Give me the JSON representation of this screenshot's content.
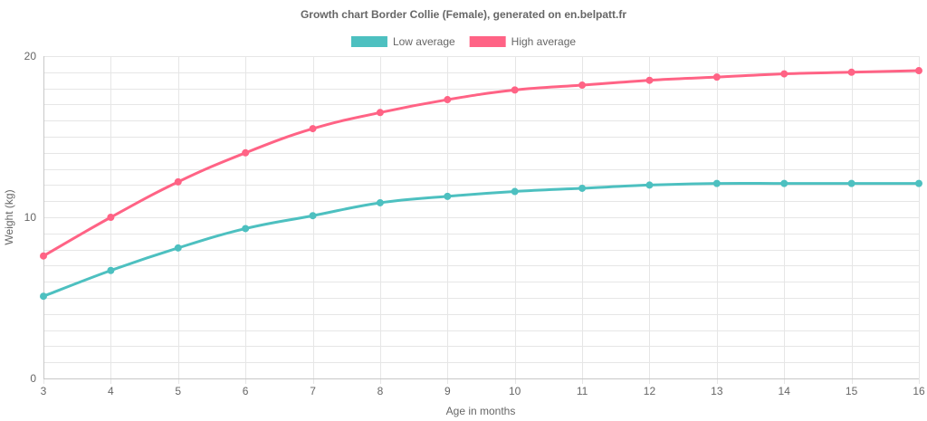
{
  "chart_data": {
    "type": "line",
    "title": "Growth chart Border Collie (Female), generated on en.belpatt.fr",
    "xlabel": "Age in months",
    "ylabel": "Weight (kg)",
    "x": [
      3,
      4,
      5,
      6,
      7,
      8,
      9,
      10,
      11,
      12,
      13,
      14,
      15,
      16
    ],
    "ylim": [
      0,
      20
    ],
    "y_ticks": [
      0,
      10,
      20
    ],
    "series": [
      {
        "name": "Low average",
        "color": "#4dc0c0",
        "values": [
          5.1,
          6.7,
          8.1,
          9.3,
          10.1,
          10.9,
          11.3,
          11.6,
          11.8,
          12.0,
          12.1,
          12.1,
          12.1,
          12.1
        ]
      },
      {
        "name": "High average",
        "color": "#ff6385",
        "values": [
          7.6,
          10.0,
          12.2,
          14.0,
          15.5,
          16.5,
          17.3,
          17.9,
          18.2,
          18.5,
          18.7,
          18.9,
          19.0,
          19.1
        ]
      }
    ],
    "legend": "top",
    "grid": true
  }
}
